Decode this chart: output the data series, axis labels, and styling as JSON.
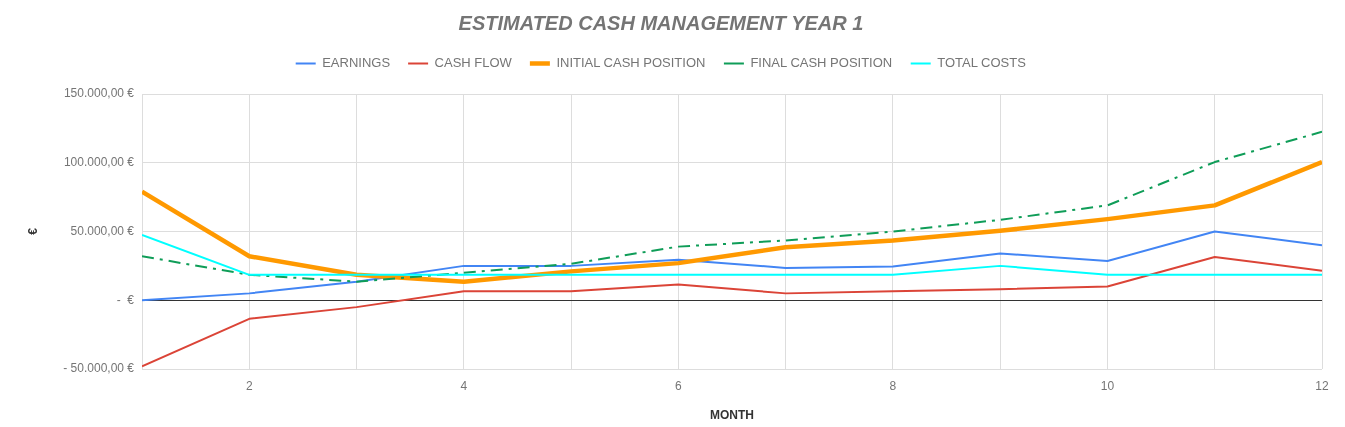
{
  "chart_data": {
    "type": "line",
    "title": "ESTIMATED CASH MANAGEMENT YEAR 1",
    "xlabel": "MONTH",
    "ylabel": "€",
    "x": [
      1,
      2,
      3,
      4,
      5,
      6,
      7,
      8,
      9,
      10,
      11,
      12
    ],
    "xlim": [
      1,
      12
    ],
    "xticks": [
      {
        "value": 1,
        "label": null
      },
      2,
      {
        "value": 3,
        "label": null
      },
      4,
      {
        "value": 5,
        "label": null
      },
      6,
      {
        "value": 7,
        "label": null
      },
      8,
      {
        "value": 9,
        "label": null
      },
      10,
      {
        "value": 11,
        "label": null
      },
      12
    ],
    "ylim": [
      -50000,
      150000
    ],
    "yticks": [
      {
        "value": -50000,
        "label": "- 50.000,00 €"
      },
      {
        "value": 0,
        "label": "-  €"
      },
      {
        "value": 50000,
        "label": "50.000,00 €"
      },
      {
        "value": 100000,
        "label": "100.000,00 €"
      },
      {
        "value": 150000,
        "label": "150.000,00 €"
      }
    ],
    "series": [
      {
        "name": "EARNINGS",
        "color": "#4285f4",
        "values": [
          0,
          5000,
          13500,
          25000,
          25000,
          29500,
          23500,
          24500,
          34000,
          28500,
          50000,
          40000
        ]
      },
      {
        "name": "CASH FLOW",
        "color": "#db4437",
        "values": [
          -48000,
          -13500,
          -5000,
          6500,
          6500,
          11500,
          5000,
          6500,
          8000,
          10000,
          31500,
          21500
        ]
      },
      {
        "name": "INITIAL CASH POSITION",
        "color": "#ff9900",
        "values": [
          79000,
          32000,
          18500,
          13500,
          21000,
          27000,
          38500,
          43500,
          50500,
          59000,
          69000,
          100500
        ]
      },
      {
        "name": "FINAL CASH POSITION",
        "color": "#0f9d58",
        "line_style": "dashed",
        "values": [
          32000,
          18500,
          13500,
          20000,
          26500,
          39000,
          43500,
          50000,
          58500,
          69000,
          100500,
          122500
        ]
      },
      {
        "name": "TOTAL COSTS",
        "color": "#00ffff",
        "values": [
          47500,
          18500,
          18500,
          18500,
          18500,
          18500,
          18500,
          18500,
          25000,
          18500,
          18500,
          18500
        ]
      }
    ],
    "legend": "top",
    "grid": true,
    "marker": "none"
  }
}
